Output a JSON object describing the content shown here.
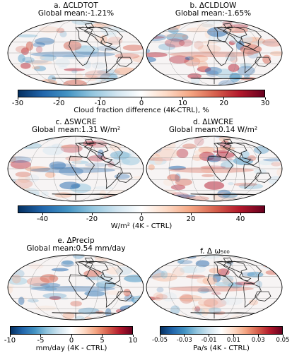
{
  "panels": [
    {
      "id": "a",
      "title": "a. ΔCLDTOT",
      "subtitle": "Global mean:-1.21%"
    },
    {
      "id": "b",
      "title": "b. ΔCLDLOW",
      "subtitle": "Global mean:-1.65%"
    },
    {
      "id": "c",
      "title": "c. ΔSWCRE",
      "subtitle": "Global mean:1.31 W/m²"
    },
    {
      "id": "d",
      "title": "d. ΔLWCRE",
      "subtitle": "Global mean:0.14 W/m²"
    },
    {
      "id": "e",
      "title": "e. ΔPrecip",
      "subtitle": "Global mean:0.54 mm/day"
    },
    {
      "id": "f",
      "title": "f. Δ ω₅₀₀",
      "subtitle": ""
    }
  ],
  "colorbars": {
    "cloud": {
      "label": "Cloud fraction difference (4K-CTRL), %",
      "ticks": [
        "-30",
        "-20",
        "-10",
        "0",
        "10",
        "20",
        "30"
      ],
      "range": [
        -30,
        30
      ]
    },
    "cre": {
      "label": "W/m² (4K - CTRL)",
      "ticks": [
        "-40",
        "-20",
        "0",
        "20",
        "40"
      ],
      "range": [
        -50,
        50
      ]
    },
    "precip": {
      "label": "mm/day (4K - CTRL)",
      "ticks": [
        "-10",
        "-5",
        "0",
        "5",
        "10"
      ],
      "range": [
        -10,
        10
      ]
    },
    "omega": {
      "label": "Pa/s (4K - CTRL)",
      "ticks": [
        "-0.05",
        "-0.03",
        "-0.01",
        "0.01",
        "0.03",
        "0.05"
      ],
      "range": [
        -0.05,
        0.05
      ]
    }
  },
  "colors": {
    "negative": "#1f4e9e",
    "neutral": "#ffffff",
    "positive": "#b2182b",
    "coast": "#222222"
  },
  "chart_data": [
    {
      "type": "heatmap",
      "panel": "a",
      "variable": "ΔCLDTOT",
      "global_mean": -1.21,
      "units": "%"
    },
    {
      "type": "heatmap",
      "panel": "b",
      "variable": "ΔCLDLOW",
      "global_mean": -1.65,
      "units": "%"
    },
    {
      "type": "heatmap",
      "panel": "c",
      "variable": "ΔSWCRE",
      "global_mean": 1.31,
      "units": "W/m²"
    },
    {
      "type": "heatmap",
      "panel": "d",
      "variable": "ΔLWCRE",
      "global_mean": 0.14,
      "units": "W/m²"
    },
    {
      "type": "heatmap",
      "panel": "e",
      "variable": "ΔPrecip",
      "global_mean": 0.54,
      "units": "mm/day"
    },
    {
      "type": "heatmap",
      "panel": "f",
      "variable": "Δω500",
      "units": "Pa/s"
    }
  ]
}
